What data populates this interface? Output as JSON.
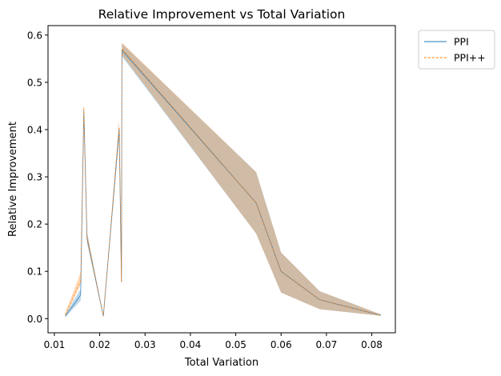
{
  "chart_data": {
    "type": "line",
    "title": "Relative Improvement vs Total Variation",
    "xlabel": "Total Variation",
    "ylabel": "Relative Improvement",
    "xlim": [
      0.0086,
      0.0852
    ],
    "ylim": [
      -0.03,
      0.62
    ],
    "xticks": [
      0.01,
      0.02,
      0.03,
      0.04,
      0.05,
      0.06,
      0.07,
      0.08
    ],
    "xtick_labels": [
      "0.01",
      "0.02",
      "0.03",
      "0.04",
      "0.05",
      "0.06",
      "0.07",
      "0.08"
    ],
    "yticks": [
      0.0,
      0.1,
      0.2,
      0.3,
      0.4,
      0.5,
      0.6
    ],
    "ytick_labels": [
      "0.0",
      "0.1",
      "0.2",
      "0.3",
      "0.4",
      "0.5",
      "0.6"
    ],
    "grid": false,
    "legend_position": "outside-top-right",
    "x": [
      0.0124,
      0.0158,
      0.0165,
      0.0172,
      0.0208,
      0.0243,
      0.0248,
      0.0249,
      0.0545,
      0.06,
      0.0685,
      0.082
    ],
    "series": [
      {
        "name": "PPI",
        "color": "#1f77b4",
        "dash": "solid",
        "values": [
          0.005,
          0.05,
          0.44,
          0.17,
          0.005,
          0.4,
          0.077,
          0.568,
          0.245,
          0.1,
          0.04,
          0.007
        ],
        "band_low": [
          0.003,
          0.038,
          0.43,
          0.16,
          0.004,
          0.385,
          0.075,
          0.555,
          0.18,
          0.055,
          0.02,
          0.006
        ],
        "band_high": [
          0.008,
          0.063,
          0.452,
          0.182,
          0.006,
          0.415,
          0.08,
          0.582,
          0.31,
          0.14,
          0.058,
          0.009
        ]
      },
      {
        "name": "PPI++",
        "color": "#ff7f0e",
        "dash": "dashed",
        "values": [
          0.008,
          0.08,
          0.447,
          0.172,
          0.005,
          0.405,
          0.077,
          0.571,
          0.245,
          0.1,
          0.04,
          0.007
        ],
        "band_low": [
          0.004,
          0.072,
          0.44,
          0.164,
          0.004,
          0.39,
          0.075,
          0.558,
          0.18,
          0.055,
          0.02,
          0.006
        ],
        "band_high": [
          0.012,
          0.098,
          0.457,
          0.183,
          0.006,
          0.42,
          0.08,
          0.584,
          0.31,
          0.14,
          0.058,
          0.009
        ]
      }
    ]
  }
}
